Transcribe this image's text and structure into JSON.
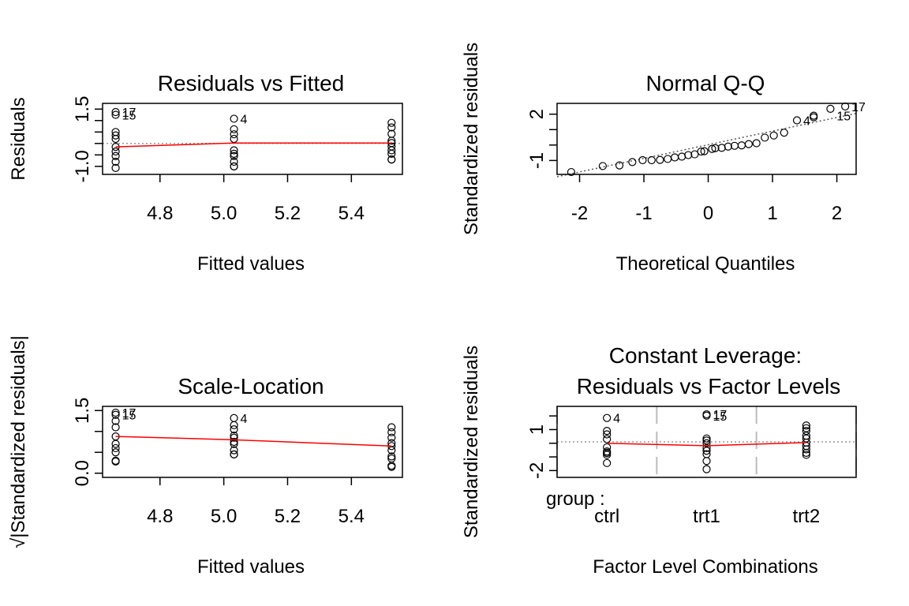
{
  "chart_data": [
    {
      "type": "scatter",
      "title": "Residuals vs Fitted",
      "xlabel": "Fitted values",
      "ylabel": "Residuals",
      "xlim": [
        4.62,
        5.56
      ],
      "ylim": [
        -1.35,
        1.75
      ],
      "xticks": [
        "4.8",
        "5.0",
        "5.2",
        "5.4"
      ],
      "xtick_values": [
        4.8,
        5.0,
        5.2,
        5.4
      ],
      "yticks": [
        "-1.0",
        "1.5"
      ],
      "ytick_values": [
        -1.0,
        1.5
      ],
      "colors": {
        "smooth": "#ff0000",
        "reference": "#999999"
      },
      "points": [
        [
          4.661,
          1.37
        ],
        [
          4.661,
          1.25
        ],
        [
          4.661,
          0.5
        ],
        [
          4.661,
          0.35
        ],
        [
          4.661,
          0.2
        ],
        [
          4.661,
          -0.15
        ],
        [
          4.661,
          -0.35
        ],
        [
          4.661,
          -0.55
        ],
        [
          4.661,
          -0.8
        ],
        [
          4.661,
          -1.07
        ],
        [
          5.032,
          1.08
        ],
        [
          5.032,
          0.62
        ],
        [
          5.032,
          0.4
        ],
        [
          5.032,
          0.2
        ],
        [
          5.032,
          -0.3
        ],
        [
          5.032,
          -0.45
        ],
        [
          5.032,
          -0.55
        ],
        [
          5.032,
          -0.8
        ],
        [
          5.032,
          -1.0
        ],
        [
          5.032,
          -1.0
        ],
        [
          5.526,
          0.9
        ],
        [
          5.526,
          0.7
        ],
        [
          5.526,
          0.42
        ],
        [
          5.526,
          0.12
        ],
        [
          5.526,
          0.02
        ],
        [
          5.526,
          -0.13
        ],
        [
          5.526,
          -0.3
        ],
        [
          5.526,
          -0.45
        ],
        [
          5.526,
          -0.7
        ],
        [
          5.526,
          -0.7
        ]
      ],
      "smooth": [
        [
          4.661,
          -0.15
        ],
        [
          5.032,
          0.02
        ],
        [
          5.526,
          0.02
        ]
      ],
      "reference_y": 0,
      "point_labels": [
        {
          "text": "17",
          "x": 4.661,
          "y": 1.37
        },
        {
          "text": "15",
          "x": 4.661,
          "y": 1.25
        },
        {
          "text": "4",
          "x": 5.032,
          "y": 1.08
        }
      ]
    },
    {
      "type": "scatter",
      "title": "Normal Q-Q",
      "xlabel": "Theoretical Quantiles",
      "ylabel": "Standardized residuals",
      "xlim": [
        -2.35,
        2.3
      ],
      "ylim": [
        -1.9,
        2.7
      ],
      "xticks": [
        "-2",
        "-1",
        "0",
        "1",
        "2"
      ],
      "xtick_values": [
        -2,
        -1,
        0,
        1,
        2
      ],
      "yticks": [
        "-1",
        "2"
      ],
      "ytick_values": [
        -1,
        2
      ],
      "colors": {
        "reference": "#555555"
      },
      "points": [
        [
          -2.13,
          -1.75
        ],
        [
          -1.64,
          -1.36
        ],
        [
          -1.38,
          -1.32
        ],
        [
          -1.18,
          -1.1
        ],
        [
          -1.02,
          -0.98
        ],
        [
          -0.88,
          -0.98
        ],
        [
          -0.75,
          -0.96
        ],
        [
          -0.63,
          -0.9
        ],
        [
          -0.52,
          -0.8
        ],
        [
          -0.41,
          -0.75
        ],
        [
          -0.31,
          -0.65
        ],
        [
          -0.21,
          -0.6
        ],
        [
          -0.11,
          -0.42
        ],
        [
          -0.06,
          -0.4
        ],
        [
          0.06,
          -0.25
        ],
        [
          0.11,
          -0.2
        ],
        [
          0.21,
          -0.18
        ],
        [
          0.31,
          -0.1
        ],
        [
          0.41,
          -0.05
        ],
        [
          0.52,
          -0.02
        ],
        [
          0.63,
          0.06
        ],
        [
          0.75,
          0.12
        ],
        [
          0.88,
          0.48
        ],
        [
          1.02,
          0.62
        ],
        [
          1.18,
          0.8
        ],
        [
          1.38,
          1.6
        ],
        [
          1.64,
          1.8
        ],
        [
          1.64,
          1.9
        ],
        [
          1.9,
          2.35
        ],
        [
          2.13,
          2.5
        ]
      ],
      "reference_line": [
        [
          -2.35,
          -2.05
        ],
        [
          2.3,
          2.05
        ]
      ],
      "point_labels": [
        {
          "text": "4",
          "x": 1.38,
          "y": 1.6
        },
        {
          "text": "15",
          "x": 1.9,
          "y": 1.9
        },
        {
          "text": "17",
          "x": 2.13,
          "y": 2.5
        }
      ]
    },
    {
      "type": "scatter",
      "title": "Scale-Location",
      "xlabel": "Fitted values",
      "ylabel": "√|Standardized residuals|",
      "xlim": [
        4.62,
        5.56
      ],
      "ylim": [
        -0.1,
        1.6
      ],
      "xticks": [
        "4.8",
        "5.0",
        "5.2",
        "5.4"
      ],
      "xtick_values": [
        4.8,
        5.0,
        5.2,
        5.4
      ],
      "yticks": [
        "0.0",
        "1.5"
      ],
      "ytick_values": [
        0.0,
        1.5
      ],
      "colors": {
        "smooth": "#ff0000"
      },
      "points": [
        [
          4.661,
          1.45
        ],
        [
          4.661,
          1.4
        ],
        [
          4.661,
          1.25
        ],
        [
          4.661,
          1.1
        ],
        [
          4.661,
          0.88
        ],
        [
          4.661,
          0.7
        ],
        [
          4.661,
          0.6
        ],
        [
          4.661,
          0.5
        ],
        [
          4.661,
          0.3
        ],
        [
          4.661,
          0.28
        ],
        [
          5.032,
          1.32
        ],
        [
          5.032,
          1.15
        ],
        [
          5.032,
          1.05
        ],
        [
          5.032,
          0.9
        ],
        [
          5.032,
          0.85
        ],
        [
          5.032,
          0.75
        ],
        [
          5.032,
          0.7
        ],
        [
          5.032,
          0.55
        ],
        [
          5.032,
          0.45
        ],
        [
          5.032,
          0.45
        ],
        [
          5.526,
          1.1
        ],
        [
          5.526,
          0.98
        ],
        [
          5.526,
          0.85
        ],
        [
          5.526,
          0.72
        ],
        [
          5.526,
          0.65
        ],
        [
          5.526,
          0.55
        ],
        [
          5.526,
          0.4
        ],
        [
          5.526,
          0.35
        ],
        [
          5.526,
          0.18
        ],
        [
          5.526,
          0.15
        ]
      ],
      "smooth": [
        [
          4.661,
          0.88
        ],
        [
          5.032,
          0.8
        ],
        [
          5.526,
          0.65
        ]
      ],
      "point_labels": [
        {
          "text": "17",
          "x": 4.661,
          "y": 1.45
        },
        {
          "text": "15",
          "x": 4.661,
          "y": 1.4
        },
        {
          "text": "4",
          "x": 5.032,
          "y": 1.32
        }
      ]
    },
    {
      "type": "scatter",
      "title": "Constant Leverage:",
      "subtitle": "Residuals vs Factor Levels",
      "xlabel": "Factor Level Combinations",
      "ylabel": "Standardized residuals",
      "xlim": [
        0.5,
        3.5
      ],
      "ylim": [
        -2.5,
        2.7
      ],
      "xticks": [
        "ctrl",
        "trt1",
        "trt2"
      ],
      "xtick_values": [
        1,
        2,
        3
      ],
      "yticks": [
        "-2",
        "1"
      ],
      "ytick_values": [
        -2,
        1
      ],
      "factor_label": "group :",
      "colors": {
        "smooth": "#ff0000",
        "reference": "#999999",
        "separators": "#bbbbbb"
      },
      "points": [
        [
          1,
          1.85
        ],
        [
          1,
          0.9
        ],
        [
          1,
          0.65
        ],
        [
          1,
          0.3
        ],
        [
          1,
          -0.3
        ],
        [
          1,
          -0.6
        ],
        [
          1,
          -0.7
        ],
        [
          1,
          -0.72
        ],
        [
          1,
          -0.85
        ],
        [
          1,
          -1.45
        ],
        [
          2,
          2.12
        ],
        [
          2,
          2.02
        ],
        [
          2,
          0.35
        ],
        [
          2,
          0.2
        ],
        [
          2,
          0.0
        ],
        [
          2,
          -0.35
        ],
        [
          2,
          -0.55
        ],
        [
          2,
          -0.8
        ],
        [
          2,
          -1.3
        ],
        [
          2,
          -1.9
        ],
        [
          3,
          1.3
        ],
        [
          3,
          1.1
        ],
        [
          3,
          0.9
        ],
        [
          3,
          0.55
        ],
        [
          3,
          0.35
        ],
        [
          3,
          0.05
        ],
        [
          3,
          -0.2
        ],
        [
          3,
          -0.45
        ],
        [
          3,
          -0.7
        ],
        [
          3,
          -0.85
        ]
      ],
      "smooth": [
        [
          1,
          0.0
        ],
        [
          2,
          -0.18
        ],
        [
          3,
          0.05
        ]
      ],
      "reference_y": 0.1,
      "separators_x": [
        0.5,
        1.5,
        2.5,
        3.5
      ],
      "point_labels": [
        {
          "text": "4",
          "x": 1,
          "y": 1.85
        },
        {
          "text": "17",
          "x": 2,
          "y": 2.12
        },
        {
          "text": "15",
          "x": 2,
          "y": 2.02
        }
      ]
    }
  ]
}
